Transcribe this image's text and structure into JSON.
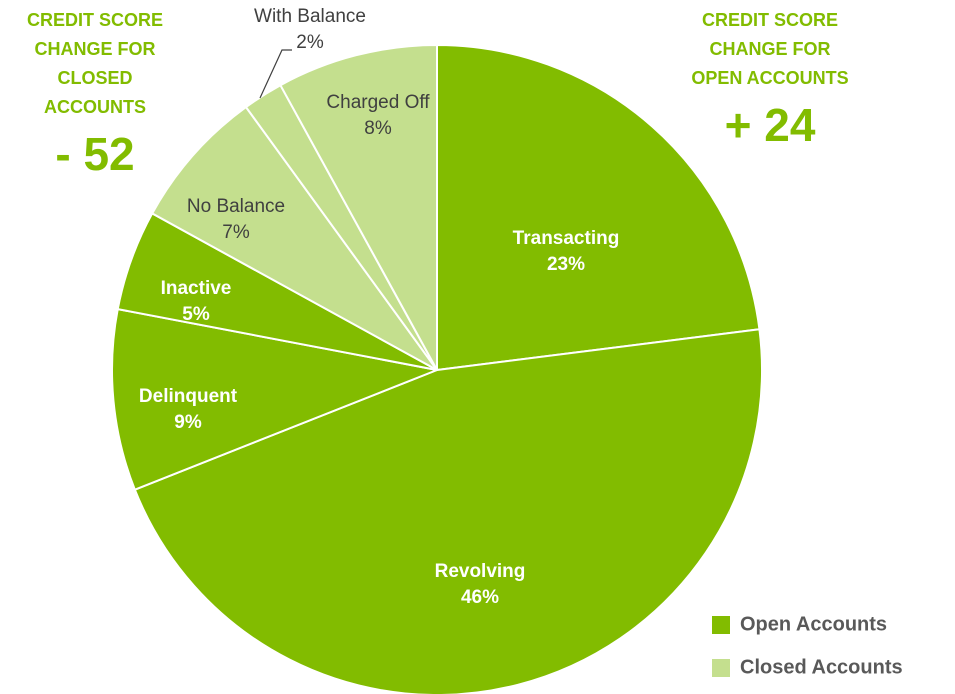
{
  "chart_data": {
    "type": "pie",
    "categories": [
      "Transacting",
      "Revolving",
      "Delinquent",
      "Inactive",
      "No Balance",
      "With Balance",
      "Charged Off"
    ],
    "values": [
      23,
      46,
      9,
      5,
      7,
      2,
      8
    ],
    "value_labels": [
      "23%",
      "46%",
      "9%",
      "5%",
      "7%",
      "2%",
      "8%"
    ],
    "colors": [
      "#82bc00",
      "#82bc00",
      "#82bc00",
      "#82bc00",
      "#c4df8e",
      "#c4df8e",
      "#c4df8e"
    ],
    "legend": [
      {
        "name": "Open Accounts",
        "color": "#82bc00"
      },
      {
        "name": "Closed Accounts",
        "color": "#c4df8e"
      }
    ],
    "legend_position": "lower right",
    "annotations": [
      {
        "text": "CREDIT SCORE CHANGE FOR CLOSED ACCOUNTS",
        "value": "- 52"
      },
      {
        "text": "CREDIT SCORE CHANGE FOR OPEN ACCOUNTS",
        "value": "+ 24"
      }
    ]
  }
}
